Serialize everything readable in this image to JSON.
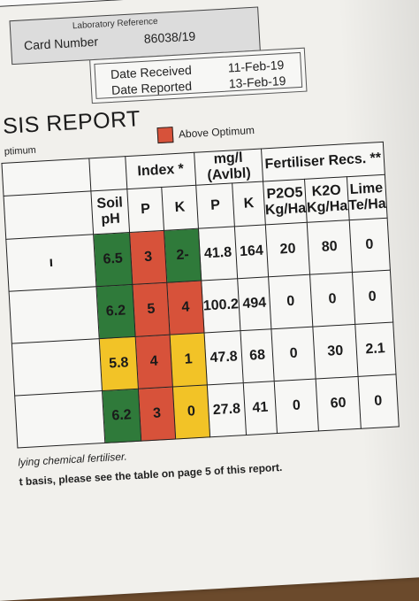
{
  "header": {
    "laboratory_reference_label": "Laboratory Reference",
    "card_number_label": "Card Number",
    "card_number": "86038/19",
    "date_received_label": "Date Received",
    "date_received": "11-Feb-19",
    "date_reported_label": "Date Reported",
    "date_reported": "13-Feb-19"
  },
  "report": {
    "title": "SIS REPORT",
    "legend_left": "ptimum",
    "legend_right": "Above Optimum",
    "legend_color": "#d7523a"
  },
  "table": {
    "group_headers": {
      "index": "Index *",
      "mgl": "mg/l (Avlbl)",
      "fert": "Fertiliser Recs. **"
    },
    "columns": {
      "soil_ph": "Soil pH",
      "p": "P",
      "k": "K",
      "p2": "P",
      "k2": "K",
      "p2o5": "P2O5",
      "k2o": "K2O",
      "lime": "Lime"
    },
    "units": {
      "p2o5": "Kg/Ha",
      "k2o": "Kg/Ha",
      "lime": "Te/Ha"
    },
    "rows": [
      {
        "label": "ı",
        "ph": "6.5",
        "ph_c": "g",
        "pi": "3",
        "pi_c": "r",
        "ki": "2-",
        "ki_c": "g",
        "p": "41.8",
        "k": "164",
        "p2o5": "20",
        "k2o": "80",
        "lime": "0"
      },
      {
        "label": "",
        "ph": "6.2",
        "ph_c": "g",
        "pi": "5",
        "pi_c": "r",
        "ki": "4",
        "ki_c": "r",
        "p": "100.2",
        "k": "494",
        "p2o5": "0",
        "k2o": "0",
        "lime": "0"
      },
      {
        "label": "",
        "ph": "5.8",
        "ph_c": "y",
        "pi": "4",
        "pi_c": "r",
        "ki": "1",
        "ki_c": "y",
        "p": "47.8",
        "k": "68",
        "p2o5": "0",
        "k2o": "30",
        "lime": "2.1"
      },
      {
        "label": "",
        "ph": "6.2",
        "ph_c": "g",
        "pi": "3",
        "pi_c": "r",
        "ki": "0",
        "ki_c": "y",
        "p": "27.8",
        "k": "41",
        "p2o5": "0",
        "k2o": "60",
        "lime": "0"
      }
    ],
    "status_colors": {
      "g": "#2f7a3a",
      "r": "#d7523a",
      "y": "#f2c327"
    }
  },
  "footer": {
    "line1": "lying chemical fertiliser.",
    "line2": "t basis, please see the table on page 5 of this report."
  }
}
